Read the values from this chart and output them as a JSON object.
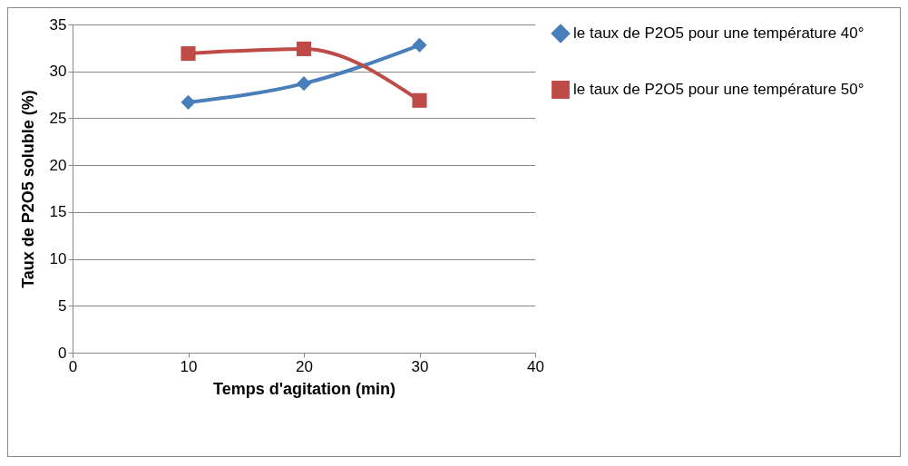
{
  "chart_data": {
    "type": "line",
    "xlabel": "Temps d'agitation (min)",
    "ylabel": "Taux de P2O5 soluble (%)",
    "x": [
      10,
      20,
      30
    ],
    "series": [
      {
        "name": "le taux de P2O5 pour une température 40°",
        "color": "#4a7ebb",
        "marker": "diamond",
        "values": [
          26.7,
          28.7,
          32.8
        ]
      },
      {
        "name": "le taux de P2O5 pour une température 50°",
        "color": "#be4b48",
        "marker": "square",
        "values": [
          31.9,
          32.4,
          26.9
        ]
      }
    ],
    "xlim": [
      0,
      40
    ],
    "xticks": [
      0,
      10,
      20,
      30,
      40
    ],
    "ylim": [
      0,
      35
    ],
    "yticks": [
      0,
      5,
      10,
      15,
      20,
      25,
      30,
      35
    ],
    "grid": "y",
    "legend": "right",
    "line_style": "solid"
  }
}
